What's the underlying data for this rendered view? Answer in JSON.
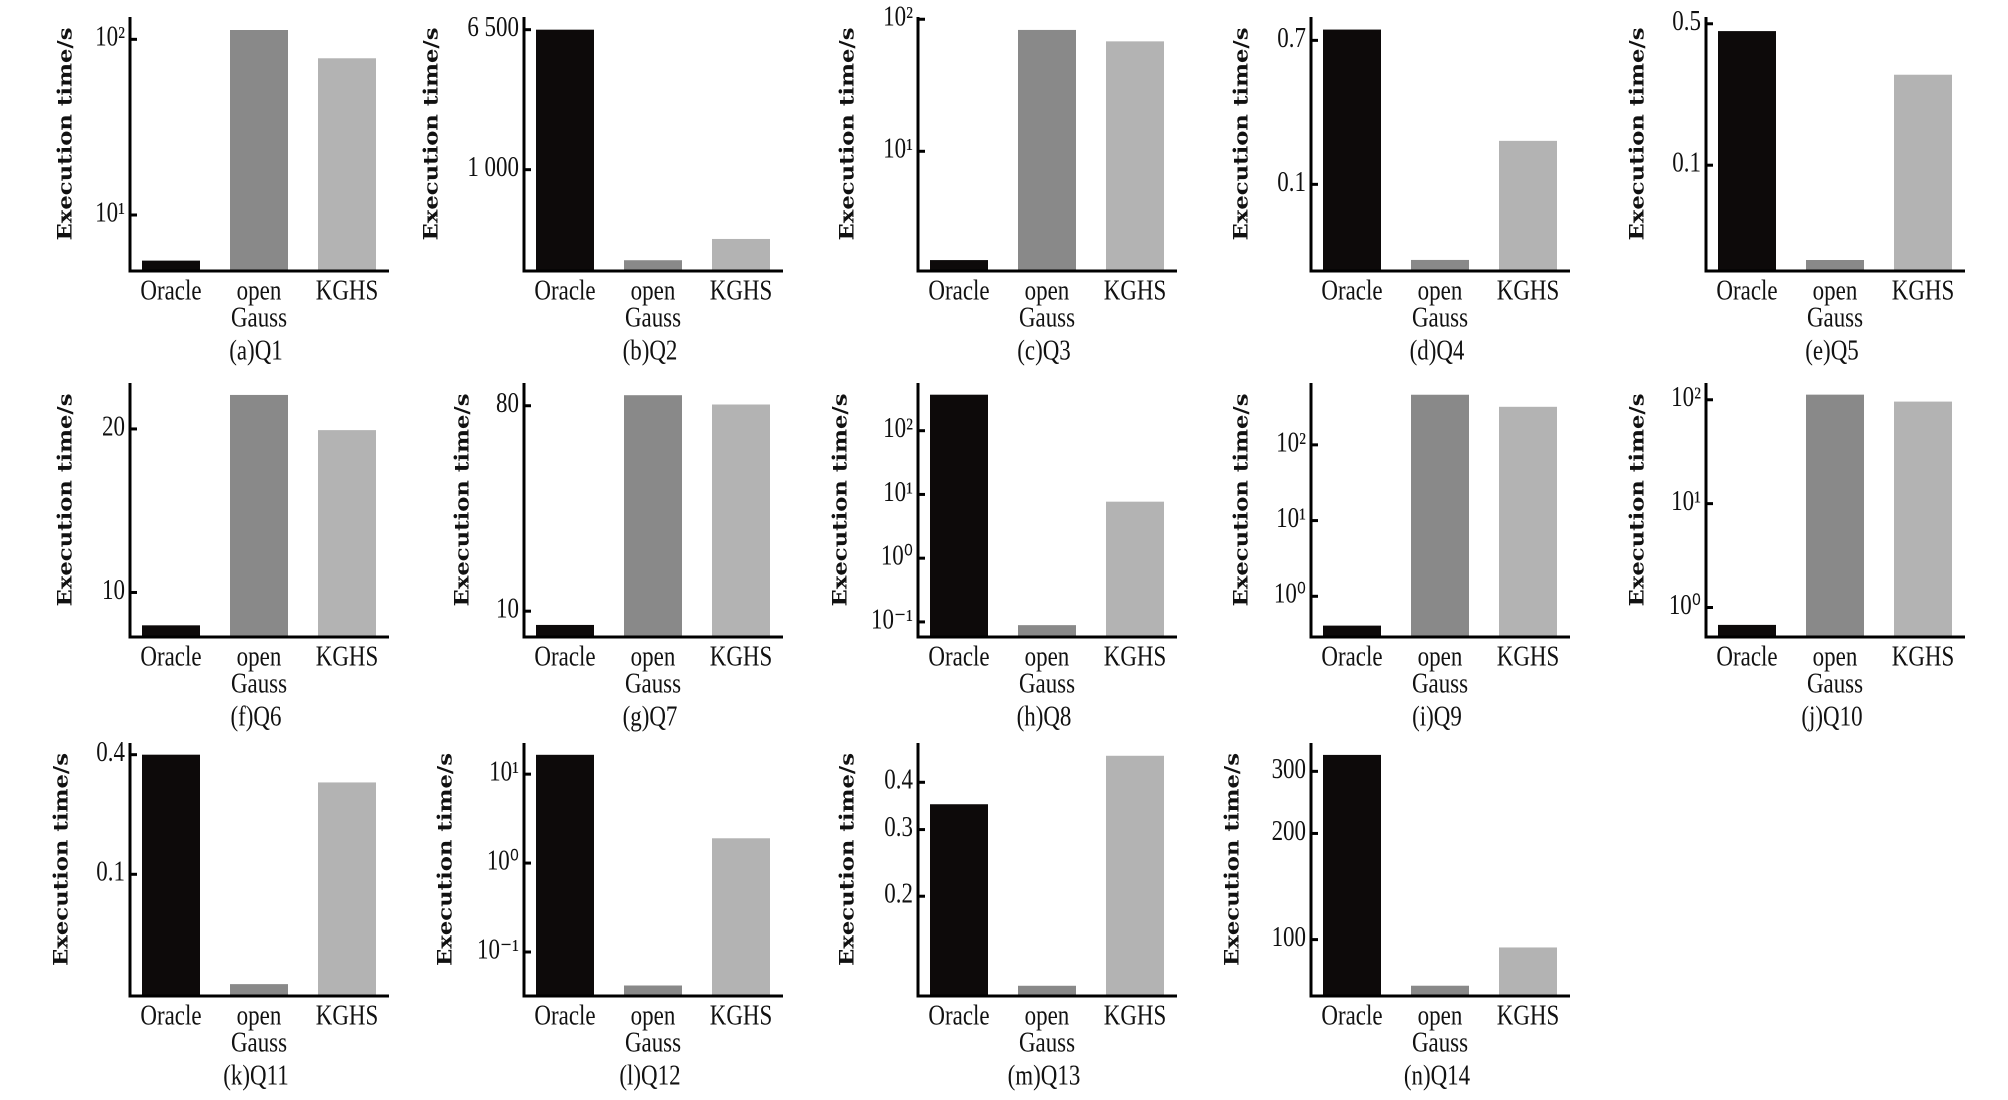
{
  "chart_data": [
    {
      "type": "bar",
      "caption": "(a)Q1",
      "ylabel": "Execution time/s",
      "scale": "log",
      "ylim": [
        4.8,
        134
      ],
      "yticks": [
        {
          "value": 100,
          "label": "10²"
        },
        {
          "value": 10,
          "label": "10¹"
        }
      ],
      "categories": [
        "Oracle",
        "open Gauss",
        "KGHS"
      ],
      "category_lines": [
        [
          "Oracle"
        ],
        [
          "open",
          "Gauss"
        ],
        [
          "KGHS"
        ]
      ],
      "values": [
        5.5,
        113,
        78
      ]
    },
    {
      "type": "bar",
      "caption": "(b)Q2",
      "ylabel": "Execution time/s",
      "scale": "log",
      "ylim": [
        258,
        7700
      ],
      "yticks": [
        {
          "value": 6500,
          "label": "6 500"
        },
        {
          "value": 1000,
          "label": "1 000"
        }
      ],
      "categories": [
        "Oracle",
        "open Gauss",
        "KGHS"
      ],
      "category_lines": [
        [
          "Oracle"
        ],
        [
          "open",
          "Gauss"
        ],
        [
          "KGHS"
        ]
      ],
      "values": [
        6500,
        298,
        396
      ]
    },
    {
      "type": "bar",
      "caption": "(c)Q3",
      "ylabel": "Execution time/s",
      "scale": "log",
      "ylim": [
        1.24,
        104
      ],
      "yticks": [
        {
          "value": 100,
          "label": "10²"
        },
        {
          "value": 10,
          "label": "10¹"
        }
      ],
      "categories": [
        "Oracle",
        "open Gauss",
        "KGHS"
      ],
      "category_lines": [
        [
          "Oracle"
        ],
        [
          "open",
          "Gauss"
        ],
        [
          "KGHS"
        ]
      ],
      "values": [
        1.5,
        83,
        68
      ]
    },
    {
      "type": "bar",
      "caption": "(d)Q4",
      "ylabel": "Execution time/s",
      "scale": "log",
      "ylim": [
        0.031,
        0.96
      ],
      "yticks": [
        {
          "value": 0.7,
          "label": "0.7"
        },
        {
          "value": 0.1,
          "label": "0.1"
        }
      ],
      "categories": [
        "Oracle",
        "open Gauss",
        "KGHS"
      ],
      "category_lines": [
        [
          "Oracle"
        ],
        [
          "open",
          "Gauss"
        ],
        [
          "KGHS"
        ]
      ],
      "values": [
        0.81,
        0.036,
        0.18
      ]
    },
    {
      "type": "bar",
      "caption": "(e)Q5",
      "ylabel": "Execution time/s",
      "scale": "log",
      "ylim": [
        0.03,
        0.54
      ],
      "yticks": [
        {
          "value": 0.5,
          "label": "0.5"
        },
        {
          "value": 0.1,
          "label": "0.1"
        }
      ],
      "categories": [
        "Oracle",
        "open Gauss",
        "KGHS"
      ],
      "category_lines": [
        [
          "Oracle"
        ],
        [
          "open",
          "Gauss"
        ],
        [
          "KGHS"
        ]
      ],
      "values": [
        0.46,
        0.034,
        0.28
      ]
    },
    {
      "type": "bar",
      "caption": "(f)Q6",
      "ylabel": "Execution time/s",
      "scale": "log",
      "ylim": [
        8.28,
        24.3
      ],
      "yticks": [
        {
          "value": 20,
          "label": "20"
        },
        {
          "value": 10,
          "label": "10"
        }
      ],
      "categories": [
        "Oracle",
        "open Gauss",
        "KGHS"
      ],
      "category_lines": [
        [
          "Oracle"
        ],
        [
          "open",
          "Gauss"
        ],
        [
          "KGHS"
        ]
      ],
      "values": [
        8.7,
        23.1,
        19.9
      ]
    },
    {
      "type": "bar",
      "caption": "(g)Q7",
      "ylabel": "Execution time/s",
      "scale": "log",
      "ylim": [
        7.7,
        100.7
      ],
      "yticks": [
        {
          "value": 80,
          "label": "80"
        },
        {
          "value": 10,
          "label": "10"
        }
      ],
      "categories": [
        "Oracle",
        "open Gauss",
        "KGHS"
      ],
      "category_lines": [
        [
          "Oracle"
        ],
        [
          "open",
          "Gauss"
        ],
        [
          "KGHS"
        ]
      ],
      "values": [
        8.7,
        89,
        81
      ]
    },
    {
      "type": "bar",
      "caption": "(h)Q8",
      "ylabel": "Execution time/s",
      "scale": "log",
      "ylim": [
        0.058,
        560
      ],
      "yticks": [
        {
          "value": 100,
          "label": "10²"
        },
        {
          "value": 10,
          "label": "10¹"
        },
        {
          "value": 1,
          "label": "10⁰"
        },
        {
          "value": 0.1,
          "label": "10⁻¹"
        }
      ],
      "categories": [
        "Oracle",
        "open Gauss",
        "KGHS"
      ],
      "category_lines": [
        [
          "Oracle"
        ],
        [
          "open",
          "Gauss"
        ],
        [
          "KGHS"
        ]
      ],
      "values": [
        367,
        0.089,
        7.7
      ]
    },
    {
      "type": "bar",
      "caption": "(i)Q9",
      "ylabel": "Execution time/s",
      "scale": "log",
      "ylim": [
        0.29,
        656
      ],
      "yticks": [
        {
          "value": 100,
          "label": "10²"
        },
        {
          "value": 10,
          "label": "10¹"
        },
        {
          "value": 1,
          "label": "10⁰"
        }
      ],
      "categories": [
        "Oracle",
        "open Gauss",
        "KGHS"
      ],
      "category_lines": [
        [
          "Oracle"
        ],
        [
          "open",
          "Gauss"
        ],
        [
          "KGHS"
        ]
      ],
      "values": [
        0.41,
        459,
        318
      ]
    },
    {
      "type": "bar",
      "caption": "(j)Q10",
      "ylabel": "Execution time/s",
      "scale": "log",
      "ylim": [
        0.52,
        145
      ],
      "yticks": [
        {
          "value": 100,
          "label": "10²"
        },
        {
          "value": 10,
          "label": "10¹"
        },
        {
          "value": 1,
          "label": "10⁰"
        }
      ],
      "categories": [
        "Oracle",
        "open Gauss",
        "KGHS"
      ],
      "category_lines": [
        [
          "Oracle"
        ],
        [
          "open",
          "Gauss"
        ],
        [
          "KGHS"
        ]
      ],
      "values": [
        0.68,
        112,
        96
      ]
    },
    {
      "type": "bar",
      "caption": "(k)Q11",
      "ylabel": "Execution time/s",
      "scale": "log",
      "ylim": [
        0.0244,
        0.458
      ],
      "yticks": [
        {
          "value": 0.4,
          "label": "0.4"
        },
        {
          "value": 0.1,
          "label": "0.1"
        }
      ],
      "categories": [
        "Oracle",
        "open Gauss",
        "KGHS"
      ],
      "category_lines": [
        [
          "Oracle"
        ],
        [
          "open",
          "Gauss"
        ],
        [
          "KGHS"
        ]
      ],
      "values": [
        0.4,
        0.028,
        0.29
      ]
    },
    {
      "type": "bar",
      "caption": "(l)Q12",
      "ylabel": "Execution time/s",
      "scale": "log",
      "ylim": [
        0.032,
        22.4
      ],
      "yticks": [
        {
          "value": 10,
          "label": "10¹"
        },
        {
          "value": 1,
          "label": "10⁰"
        },
        {
          "value": 0.1,
          "label": "10⁻¹"
        }
      ],
      "categories": [
        "Oracle",
        "open Gauss",
        "KGHS"
      ],
      "category_lines": [
        [
          "Oracle"
        ],
        [
          "open",
          "Gauss"
        ],
        [
          "KGHS"
        ]
      ],
      "values": [
        16.5,
        0.042,
        1.9
      ]
    },
    {
      "type": "bar",
      "caption": "(m)Q13",
      "ylabel": "Execution time/s",
      "scale": "log",
      "ylim": [
        0.109,
        0.508
      ],
      "yticks": [
        {
          "value": 0.4,
          "label": "0.4"
        },
        {
          "value": 0.3,
          "label": "0.3"
        },
        {
          "value": 0.2,
          "label": "0.2"
        }
      ],
      "categories": [
        "Oracle",
        "open Gauss",
        "KGHS"
      ],
      "category_lines": [
        [
          "Oracle"
        ],
        [
          "open",
          "Gauss"
        ],
        [
          "KGHS"
        ]
      ],
      "values": [
        0.35,
        0.116,
        0.47
      ]
    },
    {
      "type": "bar",
      "caption": "(n)Q14",
      "ylabel": "Execution time/s",
      "scale": "log",
      "ylim": [
        69.2,
        361
      ],
      "yticks": [
        {
          "value": 300,
          "label": "300"
        },
        {
          "value": 200,
          "label": "200"
        },
        {
          "value": 100,
          "label": "100"
        }
      ],
      "categories": [
        "Oracle",
        "open Gauss",
        "KGHS"
      ],
      "category_lines": [
        [
          "Oracle"
        ],
        [
          "open",
          "Gauss"
        ],
        [
          "KGHS"
        ]
      ],
      "values": [
        334,
        74,
        95
      ]
    }
  ],
  "colors": {
    "Oracle": "#0d0a0a",
    "openGauss": "#898989",
    "KGHS": "#b3b3b3",
    "axis": "#000000"
  }
}
